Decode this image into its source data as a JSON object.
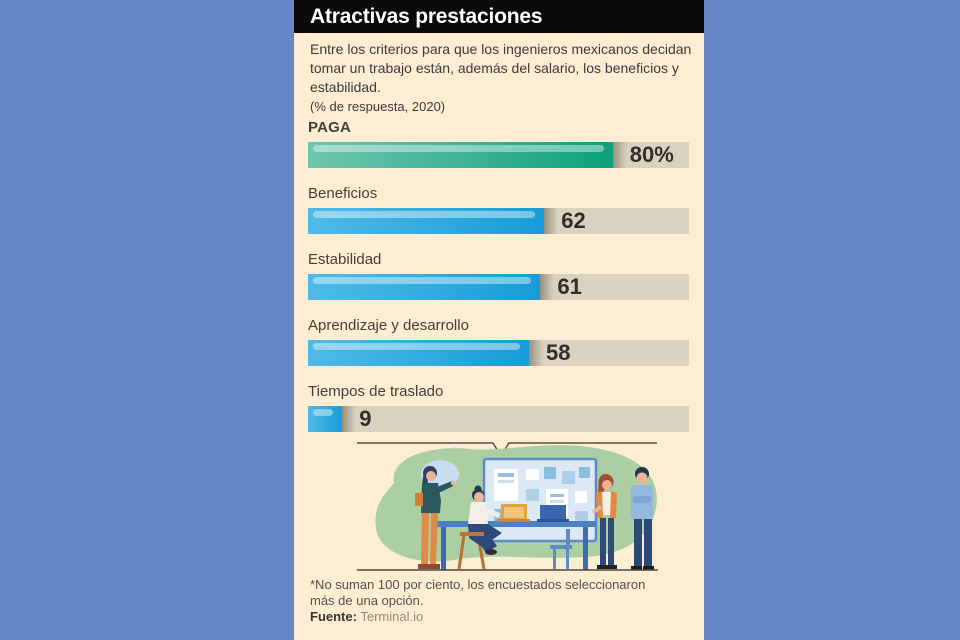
{
  "page": {
    "background_color": "#6589c6",
    "card_color": "#fdeed3"
  },
  "header": {
    "title": "Atractivas prestaciones",
    "bar_color": "#0a0a0a",
    "text_color": "#ffffff"
  },
  "intro": {
    "lines": [
      "Entre los criterios para que los ingenieros mexicanos decidan",
      "tomar un trabajo están, además del salario, los beneficios y",
      "estabilidad."
    ],
    "note": "(% de respuesta, 2020)"
  },
  "chart_data": {
    "type": "bar",
    "orientation": "horizontal",
    "title": "Atractivas prestaciones",
    "units_note": "(% de respuesta, 2020)",
    "categories": [
      "PAGA",
      "Beneficios",
      "Estabilidad",
      "Aprendizaje y desarrollo",
      "Tiempos de traslado"
    ],
    "values": [
      80,
      62,
      61,
      58,
      9
    ],
    "value_labels": [
      "80%",
      "62",
      "61",
      "58",
      "9"
    ],
    "xlim": [
      0,
      100
    ],
    "colors": {
      "highlight_bar_start": "#6ec6ae",
      "highlight_bar_end": "#0ea17c",
      "bar_start": "#4fbbe8",
      "bar_end": "#189cd8",
      "track": "#d9d2c1",
      "value_text": "#332e27"
    },
    "rows": [
      {
        "label": "PAGA",
        "value": 80,
        "display": "80%"
      },
      {
        "label": "Beneficios",
        "value": 62,
        "display": "62"
      },
      {
        "label": "Estabilidad",
        "value": 61,
        "display": "61"
      },
      {
        "label": "Aprendizaje y desarrollo",
        "value": 58,
        "display": "58"
      },
      {
        "label": "Tiempos de traslado",
        "value": 9,
        "display": "9"
      }
    ]
  },
  "illustration": {
    "blob_color": "#abcfa3",
    "line_color": "#4a453e"
  },
  "footnote": {
    "lines": [
      "*No suman 100 por ciento, los encuestados seleccionaron",
      "más de una opción."
    ],
    "source_label": "Fuente:",
    "source_value": "Terminal.io"
  }
}
